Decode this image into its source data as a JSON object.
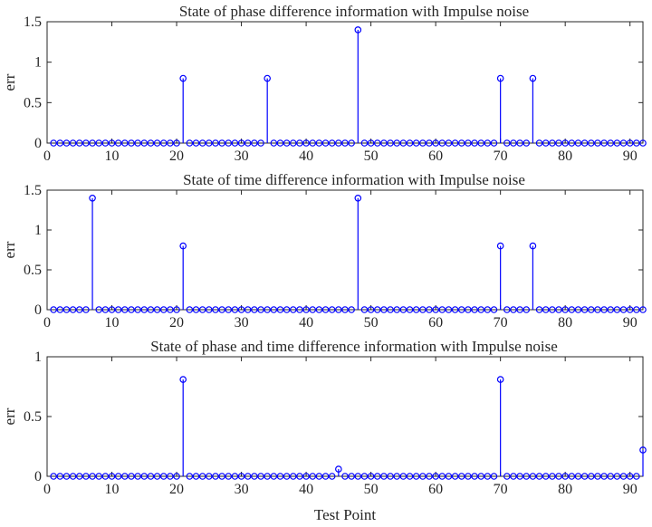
{
  "chart_data": [
    {
      "type": "stem",
      "title": "State of phase difference information with Impulse noise",
      "xlabel": "",
      "ylabel": "err",
      "xlim": [
        0,
        92
      ],
      "ylim": [
        0,
        1.5
      ],
      "xticks": [
        0,
        10,
        20,
        30,
        40,
        50,
        60,
        70,
        80,
        90
      ],
      "yticks": [
        0,
        0.5,
        1,
        1.5
      ],
      "ytick_labels": [
        "0",
        "0.5",
        "1",
        "1.5"
      ],
      "x_range": [
        1,
        92
      ],
      "baseline_value": 0,
      "nonzero_points": [
        {
          "x": 21,
          "y": 0.8
        },
        {
          "x": 34,
          "y": 0.8
        },
        {
          "x": 48,
          "y": 1.4
        },
        {
          "x": 70,
          "y": 0.8
        },
        {
          "x": 75,
          "y": 0.8
        }
      ],
      "color": "#0000ff"
    },
    {
      "type": "stem",
      "title": "State of time difference information with Impulse noise",
      "xlabel": "",
      "ylabel": "err",
      "xlim": [
        0,
        92
      ],
      "ylim": [
        0,
        1.5
      ],
      "xticks": [
        0,
        10,
        20,
        30,
        40,
        50,
        60,
        70,
        80,
        90
      ],
      "yticks": [
        0,
        0.5,
        1,
        1.5
      ],
      "ytick_labels": [
        "0",
        "0.5",
        "1",
        "1.5"
      ],
      "x_range": [
        1,
        92
      ],
      "baseline_value": 0,
      "nonzero_points": [
        {
          "x": 7,
          "y": 1.4
        },
        {
          "x": 21,
          "y": 0.8
        },
        {
          "x": 48,
          "y": 1.4
        },
        {
          "x": 70,
          "y": 0.8
        },
        {
          "x": 75,
          "y": 0.8
        }
      ],
      "color": "#0000ff"
    },
    {
      "type": "stem",
      "title": "State of phase and time difference information with Impulse noise",
      "xlabel": "Test Point",
      "ylabel": "err",
      "xlim": [
        0,
        92
      ],
      "ylim": [
        0,
        1
      ],
      "xticks": [
        0,
        10,
        20,
        30,
        40,
        50,
        60,
        70,
        80,
        90
      ],
      "yticks": [
        0,
        0.5,
        1
      ],
      "ytick_labels": [
        "0",
        "0.5",
        "1"
      ],
      "x_range": [
        1,
        92
      ],
      "baseline_value": 0,
      "nonzero_points": [
        {
          "x": 21,
          "y": 0.81
        },
        {
          "x": 45,
          "y": 0.06
        },
        {
          "x": 70,
          "y": 0.81
        },
        {
          "x": 92,
          "y": 0.22
        }
      ],
      "color": "#0000ff"
    }
  ]
}
